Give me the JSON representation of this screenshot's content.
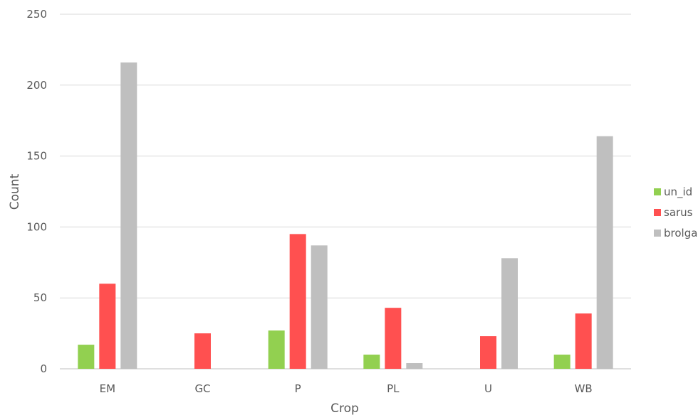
{
  "chart_data": {
    "type": "bar",
    "title": "",
    "xlabel": "Crop",
    "ylabel": "Count",
    "categories": [
      "EM",
      "GC",
      "P",
      "PL",
      "U",
      "WB"
    ],
    "series": [
      {
        "name": "un_id",
        "values": [
          17,
          0,
          27,
          10,
          0,
          10
        ],
        "color": "#92d050"
      },
      {
        "name": "sarus",
        "values": [
          60,
          25,
          95,
          43,
          23,
          39
        ],
        "color": "#ff5050"
      },
      {
        "name": "brolga",
        "values": [
          216,
          0,
          87,
          4,
          78,
          164
        ],
        "color": "#bfbfbf"
      }
    ],
    "ylim": [
      0,
      250
    ],
    "yticks": [
      "0",
      "50",
      "100",
      "150",
      "200",
      "250"
    ],
    "grid": true,
    "legend_position": "right"
  }
}
